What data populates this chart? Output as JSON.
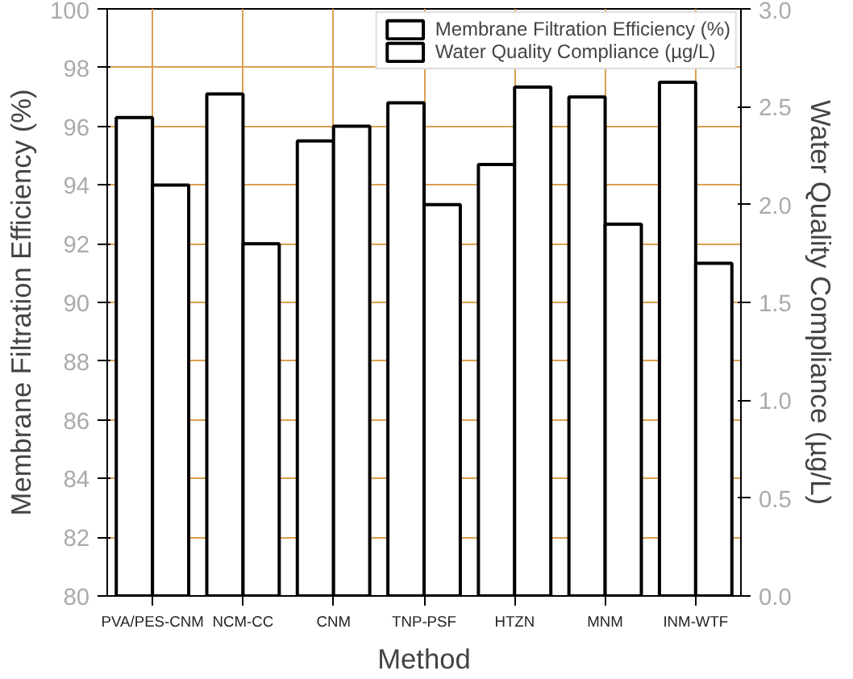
{
  "chart_data": {
    "type": "bar",
    "xlabel": "Method",
    "ylabel": "Membrane Filtration Efficiency (%)",
    "y2label": "Water Quality Compliance (µg/L)",
    "categories": [
      "PVA/PES-CNM",
      "NCM-CC",
      "CNM",
      "TNP-PSF",
      "HTZN",
      "MNM",
      "INM-WTF"
    ],
    "series": [
      {
        "name": "Membrane Filtration Efficiency (%)",
        "color": "#ffffff",
        "values": [
          96.3,
          97.1,
          95.5,
          96.8,
          94.7,
          97.0,
          97.5
        ]
      },
      {
        "name": "Water Quality Compliance (µg/L)",
        "color": "#ffffff",
        "axis": "y2",
        "values": [
          2.1,
          1.8,
          2.4,
          2.0,
          2.6,
          1.9,
          1.7
        ]
      }
    ],
    "ylim": [
      80,
      100
    ],
    "yticks": [
      80,
      82,
      84,
      86,
      88,
      90,
      92,
      94,
      96,
      98,
      100
    ],
    "y2lim": [
      0,
      3.0
    ],
    "y2ticks": [
      {
        "value": 0,
        "label": "0.0"
      },
      0.5,
      {
        "value": 1,
        "label": "1.0"
      },
      1.5,
      {
        "value": 2,
        "label": "2.0"
      },
      2.5,
      {
        "value": 3,
        "label": "3.0"
      }
    ],
    "grid": true,
    "legend": "top right"
  }
}
